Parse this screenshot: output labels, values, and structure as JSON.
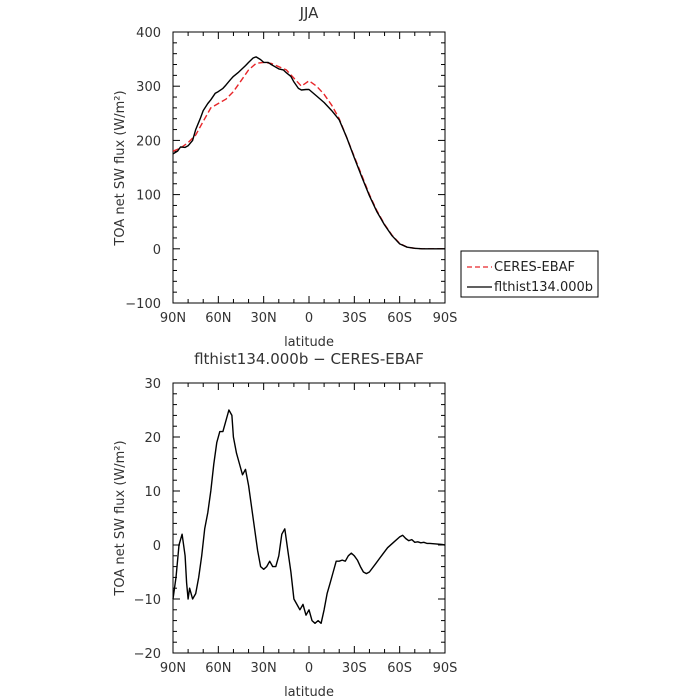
{
  "chart_data": [
    {
      "type": "line",
      "title": "JJA",
      "xlabel": "latitude",
      "ylabel": "TOA net SW flux (W/m²)",
      "xlim": [
        90,
        -90
      ],
      "ylim": [
        -100,
        400
      ],
      "x_ticks": [
        90,
        60,
        30,
        0,
        -30,
        -60,
        -90
      ],
      "x_tick_labels": [
        "90N",
        "60N",
        "30N",
        "0",
        "30S",
        "60S",
        "90S"
      ],
      "y_ticks": [
        -100,
        0,
        100,
        200,
        300,
        400
      ],
      "y_tick_labels": [
        "−100",
        "0",
        "100",
        "200",
        "300",
        "400"
      ],
      "legend": "right",
      "series": [
        {
          "name": "CERES-EBAF",
          "color": "#e8262a",
          "dash": "dashed",
          "x": [
            90,
            85,
            80,
            75,
            70,
            65,
            60,
            55,
            50,
            45,
            40,
            35,
            30,
            25,
            20,
            15,
            10,
            5,
            2,
            0,
            -5,
            -10,
            -15,
            -20,
            -25,
            -30,
            -35,
            -40,
            -45,
            -50,
            -55,
            -60,
            -65,
            -70,
            -75,
            -80,
            -85,
            -90
          ],
          "y": [
            180,
            186,
            196,
            210,
            235,
            260,
            268,
            276,
            290,
            310,
            330,
            342,
            344,
            342,
            336,
            330,
            315,
            300,
            306,
            310,
            300,
            285,
            265,
            240,
            205,
            170,
            135,
            100,
            70,
            45,
            25,
            10,
            3,
            1,
            0,
            0,
            0,
            0
          ]
        },
        {
          "name": "flthist134.000b",
          "color": "#000000",
          "dash": "solid",
          "x": [
            90,
            87,
            85,
            82,
            80,
            77,
            75,
            72,
            70,
            67,
            65,
            62,
            60,
            57,
            55,
            52,
            50,
            47,
            45,
            42,
            40,
            37,
            35,
            32,
            30,
            27,
            25,
            22,
            20,
            17,
            15,
            12,
            10,
            7,
            5,
            2,
            0,
            -5,
            -10,
            -15,
            -20,
            -25,
            -30,
            -35,
            -40,
            -45,
            -50,
            -55,
            -60,
            -65,
            -70,
            -75,
            -80,
            -85,
            -90
          ],
          "y": [
            175,
            180,
            188,
            187,
            190,
            200,
            220,
            240,
            255,
            268,
            275,
            287,
            290,
            296,
            302,
            312,
            318,
            325,
            330,
            338,
            344,
            352,
            354,
            349,
            344,
            344,
            340,
            335,
            332,
            330,
            325,
            318,
            308,
            296,
            293,
            294,
            294,
            282,
            270,
            255,
            238,
            205,
            168,
            132,
            98,
            68,
            44,
            24,
            9,
            3,
            1,
            0,
            0,
            0,
            0
          ]
        }
      ]
    },
    {
      "type": "line",
      "title": "flthist134.000b − CERES-EBAF",
      "xlabel": "latitude",
      "ylabel": "TOA net SW flux (W/m²)",
      "xlim": [
        90,
        -90
      ],
      "ylim": [
        -20,
        30
      ],
      "x_ticks": [
        90,
        60,
        30,
        0,
        -30,
        -60,
        -90
      ],
      "x_tick_labels": [
        "90N",
        "60N",
        "30N",
        "0",
        "30S",
        "60S",
        "90S"
      ],
      "y_ticks": [
        -20,
        -10,
        0,
        10,
        20,
        30
      ],
      "y_tick_labels": [
        "−20",
        "−10",
        "0",
        "10",
        "20",
        "30"
      ],
      "series": [
        {
          "color": "#000000",
          "dash": "solid",
          "x": [
            90,
            88,
            86,
            84,
            82,
            81,
            80,
            79,
            78,
            77,
            75,
            73,
            71,
            69,
            67,
            65,
            63,
            61,
            59,
            57,
            55,
            53,
            51,
            50,
            48,
            46,
            44,
            42,
            40,
            38,
            36,
            34,
            32,
            30,
            28,
            26,
            24,
            22,
            20,
            18,
            16,
            14,
            12,
            10,
            8,
            6,
            4,
            2,
            0,
            -2,
            -4,
            -6,
            -8,
            -10,
            -12,
            -14,
            -16,
            -18,
            -20,
            -22,
            -24,
            -26,
            -28,
            -30,
            -32,
            -34,
            -36,
            -38,
            -40,
            -44,
            -48,
            -52,
            -56,
            -60,
            -62,
            -64,
            -66,
            -68,
            -70,
            -72,
            -74,
            -76,
            -78,
            -80,
            -84,
            -88,
            -90
          ],
          "y": [
            -10,
            -6,
            0,
            2,
            -2,
            -7,
            -10,
            -8,
            -9,
            -10,
            -9,
            -6,
            -2,
            3,
            6,
            10,
            15,
            19,
            21,
            21,
            23,
            25,
            24,
            20,
            17,
            15,
            13,
            14,
            11,
            7,
            3,
            -1,
            -4,
            -4.5,
            -4,
            -3,
            -4,
            -4,
            -2,
            2,
            3,
            -1,
            -5,
            -10,
            -11,
            -12,
            -11,
            -13,
            -12,
            -14,
            -14.5,
            -14,
            -14.5,
            -12,
            -9,
            -7,
            -5,
            -3,
            -3,
            -2.8,
            -3,
            -2,
            -1.5,
            -2,
            -2.8,
            -4,
            -5,
            -5.3,
            -5,
            -3.5,
            -2,
            -0.5,
            0.5,
            1.5,
            1.8,
            1.2,
            0.8,
            1,
            0.5,
            0.6,
            0.4,
            0.5,
            0.3,
            0.3,
            0.2,
            0.1,
            0
          ]
        }
      ]
    }
  ]
}
